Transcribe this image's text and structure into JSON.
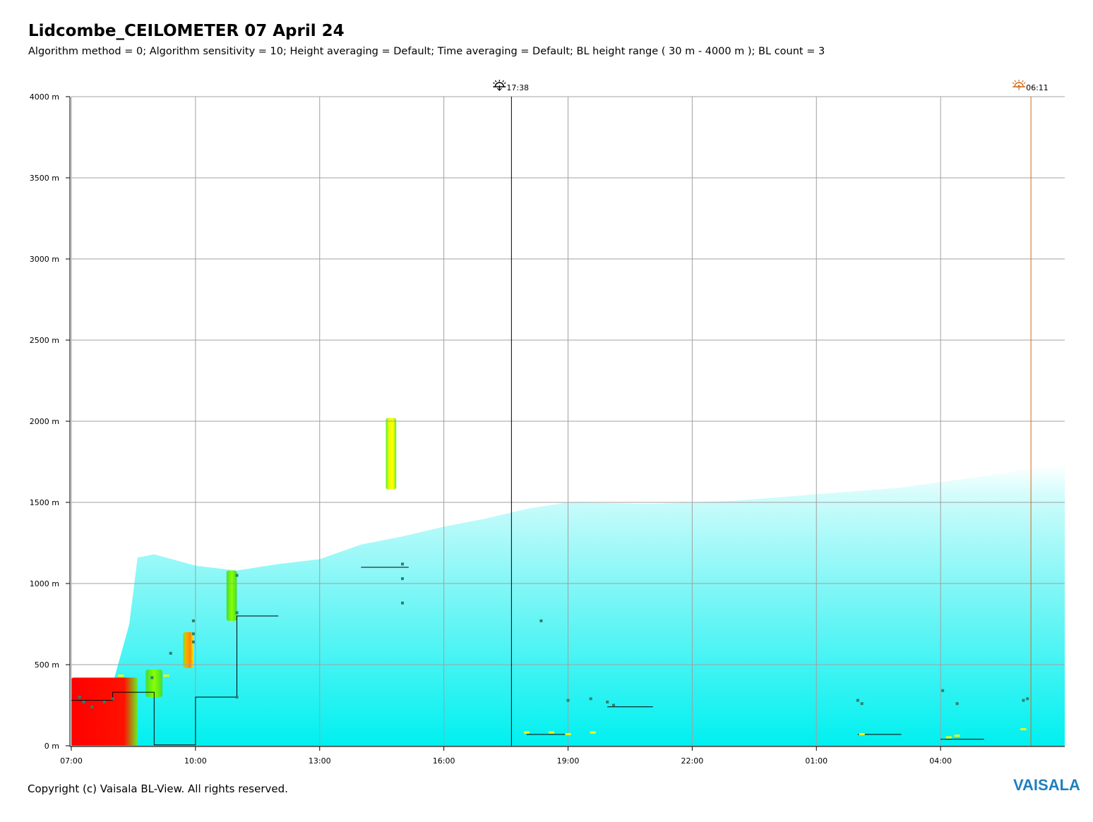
{
  "header": {
    "title": "Lidcombe_CEILOMETER 07 April 24",
    "subtitle": "Algorithm method = 0; Algorithm sensitivity = 10; Height averaging = Default; Time averaging = Default; BL height range ( 30 m - 4000 m ); BL count = 3"
  },
  "footer": {
    "copyright": "Copyright (c) Vaisala BL-View. All rights reserved.",
    "brand": "VAISALA"
  },
  "colors": {
    "brand": "#1f7fc0",
    "sunset_line": "#000000",
    "sunrise_line": "#d2691e",
    "grid": "#a0a0a0",
    "backscatter_base": "#00f0f0",
    "high_signal": "#ff0000",
    "medium_signal": "#ffff00",
    "low_signal": "#66ff00",
    "marker": "#2f7f6f"
  },
  "chart_data": {
    "type": "heatmap",
    "title": "Lidcombe_CEILOMETER 07 April 24",
    "subtitle": "Algorithm method = 0; Algorithm sensitivity = 10; Height averaging = Default; Time averaging = Default; BL height range ( 30 m - 4000 m ); BL count = 3",
    "x_axis": {
      "ticks": [
        "07:00",
        "10:00",
        "13:00",
        "16:00",
        "19:00",
        "22:00",
        "01:00",
        "04:00"
      ],
      "tick_hours": [
        0,
        3,
        6,
        9,
        12,
        15,
        18,
        21
      ],
      "range_hours": [
        0,
        24
      ],
      "start_time": "07:00"
    },
    "y_axis": {
      "ticks": [
        "0 m",
        "500 m",
        "1000 m",
        "1500 m",
        "2000 m",
        "2500 m",
        "3000 m",
        "3500 m",
        "4000 m"
      ],
      "tick_values": [
        0,
        500,
        1000,
        1500,
        2000,
        2500,
        3000,
        3500,
        4000
      ],
      "range": [
        0,
        4000
      ],
      "unit": "m"
    },
    "grid": true,
    "events": [
      {
        "icon": "sunset-icon",
        "label": "17:38",
        "hour_offset": 10.633
      },
      {
        "icon": "sunrise-icon",
        "label": "06:11",
        "hour_offset": 23.183
      }
    ],
    "aerosol_layer_top_m": [
      [
        0.0,
        330
      ],
      [
        1.0,
        380
      ],
      [
        1.4,
        750
      ],
      [
        1.6,
        1160
      ],
      [
        2.0,
        1180
      ],
      [
        3.0,
        1110
      ],
      [
        4.0,
        1080
      ],
      [
        5.0,
        1120
      ],
      [
        6.0,
        1150
      ],
      [
        7.0,
        1240
      ],
      [
        8.0,
        1290
      ],
      [
        9.0,
        1350
      ],
      [
        10.0,
        1400
      ],
      [
        11.0,
        1460
      ],
      [
        12.0,
        1500
      ],
      [
        14.0,
        1490
      ],
      [
        16.0,
        1510
      ],
      [
        18.0,
        1550
      ],
      [
        20.0,
        1590
      ],
      [
        22.0,
        1660
      ],
      [
        24.0,
        1740
      ]
    ],
    "bl_height_steps_m": [
      [
        0.0,
        280
      ],
      [
        1.0,
        280
      ],
      [
        1.0,
        330
      ],
      [
        2.0,
        330
      ],
      [
        2.0,
        5
      ],
      [
        3.0,
        5
      ],
      [
        3.0,
        300
      ],
      [
        4.0,
        300
      ],
      [
        4.0,
        800
      ],
      [
        5.0,
        800
      ]
    ],
    "bl_segments_m": [
      {
        "from": 7.0,
        "to": 8.15,
        "height": 1100
      },
      {
        "from": 11.0,
        "to": 12.0,
        "height": 70
      },
      {
        "from": 12.95,
        "to": 14.05,
        "height": 240
      },
      {
        "from": 19.0,
        "to": 20.05,
        "height": 70
      },
      {
        "from": 21.0,
        "to": 22.05,
        "height": 40
      }
    ],
    "cloud_layers": [
      {
        "hour_from": 7.6,
        "hour_to": 7.85,
        "base_m": 1580,
        "top_m": 2020,
        "intensity": "medium"
      },
      {
        "hour_from": 3.75,
        "hour_to": 4.0,
        "base_m": 770,
        "top_m": 1080,
        "intensity": "low"
      },
      {
        "hour_from": 2.7,
        "hour_to": 2.95,
        "base_m": 480,
        "top_m": 700,
        "intensity": "medium-high"
      },
      {
        "hour_from": 1.8,
        "hour_to": 2.2,
        "base_m": 300,
        "top_m": 470,
        "intensity": "low"
      },
      {
        "hour_from": 0.0,
        "hour_to": 1.6,
        "base_m": 0,
        "top_m": 420,
        "intensity": "high"
      }
    ],
    "marker_points": [
      [
        0.2,
        300
      ],
      [
        0.3,
        270
      ],
      [
        0.5,
        240
      ],
      [
        0.8,
        270
      ],
      [
        1.0,
        290
      ],
      [
        1.95,
        420
      ],
      [
        2.4,
        570
      ],
      [
        2.95,
        640
      ],
      [
        2.95,
        690
      ],
      [
        2.95,
        770
      ],
      [
        4.0,
        1050
      ],
      [
        4.0,
        820
      ],
      [
        4.0,
        300
      ],
      [
        8.0,
        1120
      ],
      [
        8.0,
        1030
      ],
      [
        8.0,
        880
      ],
      [
        11.35,
        770
      ],
      [
        12.0,
        280
      ],
      [
        12.55,
        290
      ],
      [
        12.95,
        270
      ],
      [
        13.1,
        250
      ],
      [
        19.0,
        280
      ],
      [
        19.1,
        260
      ],
      [
        21.05,
        340
      ],
      [
        21.4,
        260
      ],
      [
        23.0,
        280
      ],
      [
        23.1,
        290
      ]
    ],
    "yellow_marks": [
      [
        1.2,
        430
      ],
      [
        2.3,
        430
      ],
      [
        11.0,
        80
      ],
      [
        11.6,
        80
      ],
      [
        12.0,
        70
      ],
      [
        12.6,
        80
      ],
      [
        19.1,
        70
      ],
      [
        21.2,
        50
      ],
      [
        21.4,
        60
      ],
      [
        23.0,
        100
      ]
    ]
  }
}
